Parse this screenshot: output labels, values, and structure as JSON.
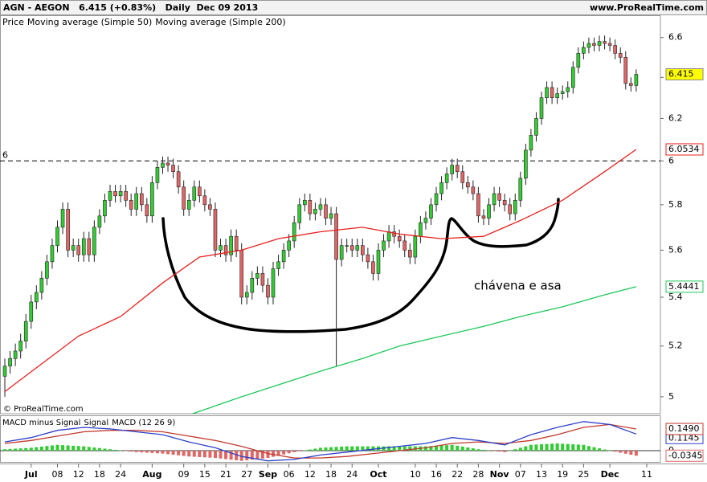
{
  "chart_data": [
    {
      "type": "candlestick",
      "title": "AGN - AEGON   6.415 (+0.83%)   Daily  Dec 09 2013",
      "source": "www.ProRealTime.com",
      "watermark": "© ProRealTime.com",
      "legend_label": "Price",
      "annotation": "chávena e asa",
      "log_scale": true,
      "up_color": "#33cc33",
      "down_color": "#e06666",
      "last_color": "#ffff00",
      "reference_line": 6,
      "xlim": [
        -0.92,
        124.6
      ],
      "ylim": [
        4.935,
        6.64
      ],
      "yticks": [
        5,
        5.2,
        5.4,
        5.6,
        5.8,
        6,
        6.2,
        6.4,
        6.6
      ],
      "open": [
        5.08,
        5.12,
        5.15,
        5.18,
        5.22,
        5.3,
        5.38,
        5.42,
        5.48,
        5.55,
        5.62,
        5.7,
        5.78,
        5.6,
        5.62,
        5.58,
        5.65,
        5.58,
        5.7,
        5.75,
        5.82,
        5.86,
        5.84,
        5.86,
        5.82,
        5.78,
        5.85,
        5.8,
        5.75,
        5.9,
        5.97,
        5.99,
        5.98,
        5.95,
        5.88,
        5.78,
        5.82,
        5.88,
        5.84,
        5.8,
        5.78,
        5.6,
        5.62,
        5.58,
        5.66,
        5.6,
        5.4,
        5.42,
        5.48,
        5.5,
        5.45,
        5.4,
        5.52,
        5.55,
        5.6,
        5.64,
        5.72,
        5.8,
        5.82,
        5.76,
        5.78,
        5.8,
        5.74,
        5.76,
        5.56,
        5.62,
        5.62,
        5.6,
        5.62,
        5.58,
        5.55,
        5.5,
        5.6,
        5.64,
        5.68,
        5.66,
        5.64,
        5.6,
        5.57,
        5.66,
        5.72,
        5.74,
        5.8,
        5.85,
        5.9,
        5.94,
        5.98,
        5.95,
        5.9,
        5.88,
        5.85,
        5.75,
        5.74,
        5.8,
        5.85,
        5.82,
        5.8,
        5.76,
        5.82,
        5.92,
        6.05,
        6.12,
        6.2,
        6.3,
        6.35,
        6.3,
        6.32,
        6.33,
        6.35,
        6.45,
        6.52,
        6.55,
        6.57,
        6.56,
        6.58,
        6.57,
        6.56,
        6.52,
        6.5,
        6.37,
        6.36
      ],
      "high": [
        5.15,
        5.18,
        5.21,
        5.25,
        5.33,
        5.41,
        5.45,
        5.51,
        5.58,
        5.65,
        5.73,
        5.81,
        5.81,
        5.65,
        5.65,
        5.68,
        5.68,
        5.73,
        5.78,
        5.85,
        5.89,
        5.89,
        5.89,
        5.89,
        5.85,
        5.88,
        5.88,
        5.83,
        5.93,
        6.0,
        6.02,
        6.02,
        6.01,
        5.98,
        5.91,
        5.85,
        5.91,
        5.91,
        5.87,
        5.83,
        5.81,
        5.65,
        5.65,
        5.69,
        5.69,
        5.63,
        5.45,
        5.51,
        5.53,
        5.53,
        5.48,
        5.55,
        5.58,
        5.63,
        5.67,
        5.75,
        5.83,
        5.85,
        5.85,
        5.81,
        5.83,
        5.83,
        5.79,
        5.79,
        5.65,
        5.65,
        5.65,
        5.65,
        5.65,
        5.61,
        5.58,
        5.63,
        5.67,
        5.71,
        5.71,
        5.69,
        5.67,
        5.63,
        5.69,
        5.75,
        5.77,
        5.83,
        5.88,
        5.93,
        5.97,
        6.01,
        6.01,
        5.98,
        5.93,
        5.91,
        5.88,
        5.78,
        5.83,
        5.88,
        5.88,
        5.85,
        5.83,
        5.85,
        5.95,
        6.08,
        6.15,
        6.23,
        6.33,
        6.38,
        6.38,
        6.35,
        6.36,
        6.38,
        6.48,
        6.55,
        6.58,
        6.6,
        6.6,
        6.61,
        6.61,
        6.6,
        6.59,
        6.55,
        6.53,
        6.4,
        6.44
      ],
      "low": [
        5.0,
        5.09,
        5.12,
        5.15,
        5.19,
        5.27,
        5.35,
        5.39,
        5.45,
        5.52,
        5.59,
        5.67,
        5.57,
        5.57,
        5.55,
        5.55,
        5.55,
        5.55,
        5.67,
        5.72,
        5.79,
        5.81,
        5.81,
        5.79,
        5.75,
        5.75,
        5.77,
        5.72,
        5.72,
        5.87,
        5.94,
        5.95,
        5.92,
        5.85,
        5.75,
        5.75,
        5.79,
        5.81,
        5.77,
        5.75,
        5.57,
        5.57,
        5.55,
        5.55,
        5.57,
        5.37,
        5.37,
        5.39,
        5.45,
        5.42,
        5.37,
        5.37,
        5.49,
        5.52,
        5.57,
        5.61,
        5.69,
        5.77,
        5.73,
        5.73,
        5.75,
        5.71,
        5.71,
        5.12,
        5.53,
        5.59,
        5.57,
        5.57,
        5.55,
        5.52,
        5.47,
        5.47,
        5.57,
        5.61,
        5.63,
        5.61,
        5.57,
        5.54,
        5.54,
        5.63,
        5.69,
        5.71,
        5.77,
        5.82,
        5.87,
        5.91,
        5.92,
        5.87,
        5.85,
        5.82,
        5.72,
        5.71,
        5.71,
        5.77,
        5.79,
        5.77,
        5.73,
        5.73,
        5.79,
        5.89,
        6.02,
        6.09,
        6.17,
        6.27,
        6.27,
        6.27,
        6.29,
        6.3,
        6.32,
        6.42,
        6.49,
        6.52,
        6.53,
        6.53,
        6.54,
        6.53,
        6.49,
        6.47,
        6.34,
        6.33,
        6.33
      ],
      "close": [
        5.12,
        5.15,
        5.18,
        5.22,
        5.3,
        5.38,
        5.42,
        5.48,
        5.55,
        5.62,
        5.7,
        5.78,
        5.6,
        5.62,
        5.58,
        5.65,
        5.58,
        5.7,
        5.75,
        5.82,
        5.86,
        5.84,
        5.86,
        5.82,
        5.78,
        5.85,
        5.8,
        5.75,
        5.9,
        5.97,
        5.99,
        5.98,
        5.95,
        5.88,
        5.78,
        5.82,
        5.88,
        5.84,
        5.8,
        5.78,
        5.6,
        5.62,
        5.58,
        5.66,
        5.6,
        5.4,
        5.42,
        5.48,
        5.5,
        5.45,
        5.4,
        5.52,
        5.55,
        5.6,
        5.64,
        5.72,
        5.8,
        5.82,
        5.76,
        5.78,
        5.8,
        5.74,
        5.76,
        5.56,
        5.62,
        5.62,
        5.6,
        5.62,
        5.58,
        5.55,
        5.5,
        5.6,
        5.64,
        5.68,
        5.66,
        5.64,
        5.6,
        5.57,
        5.66,
        5.72,
        5.74,
        5.8,
        5.85,
        5.9,
        5.94,
        5.98,
        5.95,
        5.9,
        5.88,
        5.85,
        5.75,
        5.74,
        5.8,
        5.85,
        5.82,
        5.8,
        5.76,
        5.82,
        5.92,
        6.05,
        6.12,
        6.2,
        6.3,
        6.35,
        6.3,
        6.32,
        6.33,
        6.35,
        6.45,
        6.52,
        6.55,
        6.57,
        6.56,
        6.58,
        6.57,
        6.56,
        6.52,
        6.5,
        6.37,
        6.36,
        6.415
      ],
      "series": [
        {
          "name": "Moving average (Simple 50)",
          "color": "#e8201c",
          "x": [
            0,
            14,
            22,
            30,
            37,
            45,
            52,
            60,
            68,
            75,
            83,
            91,
            98,
            106,
            114,
            120
          ],
          "values": [
            5.02,
            5.24,
            5.32,
            5.46,
            5.57,
            5.6,
            5.65,
            5.68,
            5.7,
            5.67,
            5.65,
            5.66,
            5.73,
            5.82,
            5.95,
            6.0534
          ]
        },
        {
          "name": "Moving average (Simple 200)",
          "color": "#1ec85a",
          "x": [
            35,
            45,
            60,
            68,
            75,
            83,
            91,
            98,
            106,
            114,
            120
          ],
          "values": [
            4.93,
            5.0,
            5.1,
            5.15,
            5.2,
            5.24,
            5.28,
            5.32,
            5.36,
            5.41,
            5.4441
          ]
        }
      ]
    },
    {
      "type": "macd",
      "title": "MACD (12 26 9)",
      "xlim": [
        -0.92,
        124.6
      ],
      "ylim": [
        -0.0773,
        0.2376
      ],
      "yticks": [
        0
      ],
      "grid": true,
      "xticks": [
        {
          "value": 5,
          "label": "Jul"
        },
        {
          "value": 10,
          "label": "08"
        },
        {
          "value": 14,
          "label": "12"
        },
        {
          "value": 18,
          "label": "18"
        },
        {
          "value": 22,
          "label": "24"
        },
        {
          "value": 28,
          "label": "Aug"
        },
        {
          "value": 34,
          "label": "09"
        },
        {
          "value": 38,
          "label": "15"
        },
        {
          "value": 42,
          "label": "21"
        },
        {
          "value": 46,
          "label": "27"
        },
        {
          "value": 50,
          "label": "Sep"
        },
        {
          "value": 54,
          "label": "06"
        },
        {
          "value": 58,
          "label": "12"
        },
        {
          "value": 62,
          "label": "18"
        },
        {
          "value": 66,
          "label": "24"
        },
        {
          "value": 71,
          "label": "Oct"
        },
        {
          "value": 78,
          "label": "10"
        },
        {
          "value": 82,
          "label": "16"
        },
        {
          "value": 86,
          "label": "22"
        },
        {
          "value": 90,
          "label": "28"
        },
        {
          "value": 94,
          "label": "Nov"
        },
        {
          "value": 98,
          "label": "07"
        },
        {
          "value": 102,
          "label": "13"
        },
        {
          "value": 106,
          "label": "19"
        },
        {
          "value": 110,
          "label": "25"
        },
        {
          "value": 115,
          "label": "Dec"
        },
        {
          "value": 122,
          "label": "11"
        }
      ],
      "series": [
        {
          "name": "MACD minus Signal",
          "color": "#e06666",
          "up_color": "#33cc33",
          "values": [
            0.01,
            0.012,
            0.014,
            0.016,
            0.018,
            0.02,
            0.024,
            0.028,
            0.032,
            0.036,
            0.04,
            0.038,
            0.036,
            0.034,
            0.032,
            0.03,
            0.026,
            0.022,
            0.018,
            0.014,
            0.01,
            0.006,
            0.002,
            -0.002,
            -0.006,
            -0.01,
            -0.012,
            -0.014,
            -0.016,
            -0.018,
            -0.02,
            -0.024,
            -0.028,
            -0.032,
            -0.036,
            -0.04,
            -0.042,
            -0.044,
            -0.046,
            -0.048,
            -0.05,
            -0.054,
            -0.058,
            -0.062,
            -0.066,
            -0.07,
            -0.066,
            -0.062,
            -0.058,
            -0.054,
            -0.05,
            -0.042,
            -0.034,
            -0.026,
            -0.018,
            -0.01,
            -0.004,
            0.002,
            0.008,
            0.014,
            0.02,
            0.022,
            0.024,
            0.026,
            0.028,
            0.03,
            0.03,
            0.03,
            0.03,
            0.03,
            0.03,
            0.03,
            0.03,
            0.03,
            0.03,
            0.03,
            0.03,
            0.03,
            0.03,
            0.03,
            0.03,
            0.032,
            0.034,
            0.036,
            0.038,
            0.04,
            0.034,
            0.028,
            0.022,
            0.016,
            0.01,
            0.006,
            0.002,
            -0.002,
            -0.006,
            -0.01,
            0,
            0.01,
            0.02,
            0.03,
            0.04,
            0.042,
            0.044,
            0.046,
            0.048,
            0.05,
            0.048,
            0.046,
            0.044,
            0.042,
            0.04,
            0.032,
            0.024,
            0.016,
            0.008,
            0,
            -0.007,
            -0.014,
            -0.021,
            -0.028,
            -0.0345
          ]
        },
        {
          "name": "Signal",
          "color": "#c0392b",
          "x": [
            0,
            5,
            10,
            15,
            20,
            25,
            30,
            35,
            40,
            45,
            50,
            55,
            60,
            65,
            70,
            75,
            80,
            85,
            90,
            95,
            100,
            105,
            110,
            115,
            120
          ],
          "values": [
            0.05,
            0.07,
            0.1,
            0.13,
            0.14,
            0.14,
            0.13,
            0.1,
            0.07,
            0.03,
            -0.02,
            -0.05,
            -0.05,
            -0.04,
            -0.02,
            0.0,
            0.02,
            0.05,
            0.06,
            0.05,
            0.07,
            0.11,
            0.16,
            0.18,
            0.149
          ],
          "value_labels": [
            null,
            null,
            null,
            null,
            null,
            null,
            null,
            null,
            null,
            null,
            null,
            null,
            null,
            null,
            null,
            null,
            null,
            null,
            null,
            null,
            null,
            null,
            null,
            null,
            "0.1490"
          ]
        },
        {
          "name": "MACD (12 26 9)",
          "color": "#2c3fc8",
          "x": [
            0,
            5,
            10,
            15,
            20,
            25,
            30,
            35,
            40,
            45,
            50,
            55,
            60,
            65,
            70,
            75,
            80,
            85,
            90,
            95,
            100,
            105,
            110,
            115,
            120
          ],
          "values": [
            0.06,
            0.09,
            0.14,
            0.16,
            0.15,
            0.13,
            0.11,
            0.06,
            0.02,
            -0.04,
            -0.07,
            -0.06,
            -0.03,
            -0.01,
            0.01,
            0.03,
            0.05,
            0.09,
            0.07,
            0.04,
            0.11,
            0.16,
            0.2,
            0.18,
            0.1145
          ]
        }
      ]
    }
  ]
}
